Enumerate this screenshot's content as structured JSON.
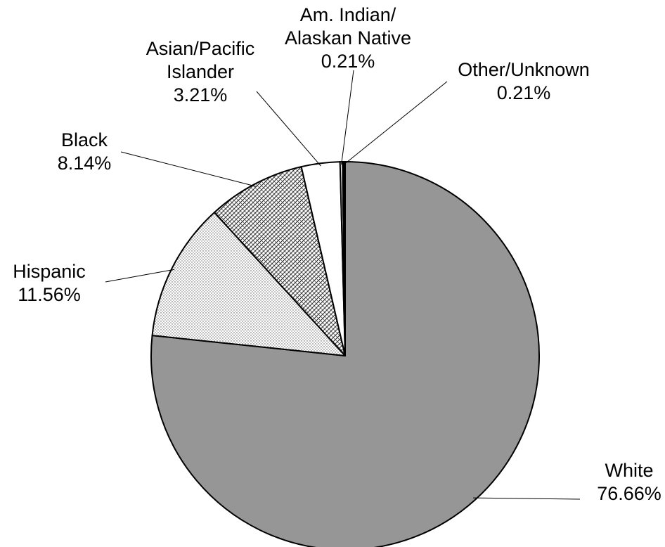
{
  "chart_data": {
    "type": "pie",
    "slices": [
      {
        "key": "white",
        "label_lines": [
          "White",
          "76.66%"
        ],
        "value": 76.66,
        "fill": "#969696",
        "pattern": "solid"
      },
      {
        "key": "hispanic",
        "label_lines": [
          "Hispanic",
          "11.56%"
        ],
        "value": 11.56,
        "fill": "#ffffff",
        "pattern": "dots"
      },
      {
        "key": "black",
        "label_lines": [
          "Black",
          "8.14%"
        ],
        "value": 8.14,
        "fill": "#ffffff",
        "pattern": "crosshatch"
      },
      {
        "key": "asian-pacific-islander",
        "label_lines": [
          "Asian/Pacific",
          "Islander",
          "3.21%"
        ],
        "value": 3.21,
        "fill": "#ffffff",
        "pattern": "none"
      },
      {
        "key": "am-indian-alaskan-native",
        "label_lines": [
          "Am. Indian/",
          "Alaskan Native",
          "0.21%"
        ],
        "value": 0.21,
        "fill": "#ffffff",
        "pattern": "none"
      },
      {
        "key": "other-unknown",
        "label_lines": [
          "Other/Unknown",
          "0.21%"
        ],
        "value": 0.21,
        "fill": "#000000",
        "pattern": "solid"
      }
    ]
  }
}
